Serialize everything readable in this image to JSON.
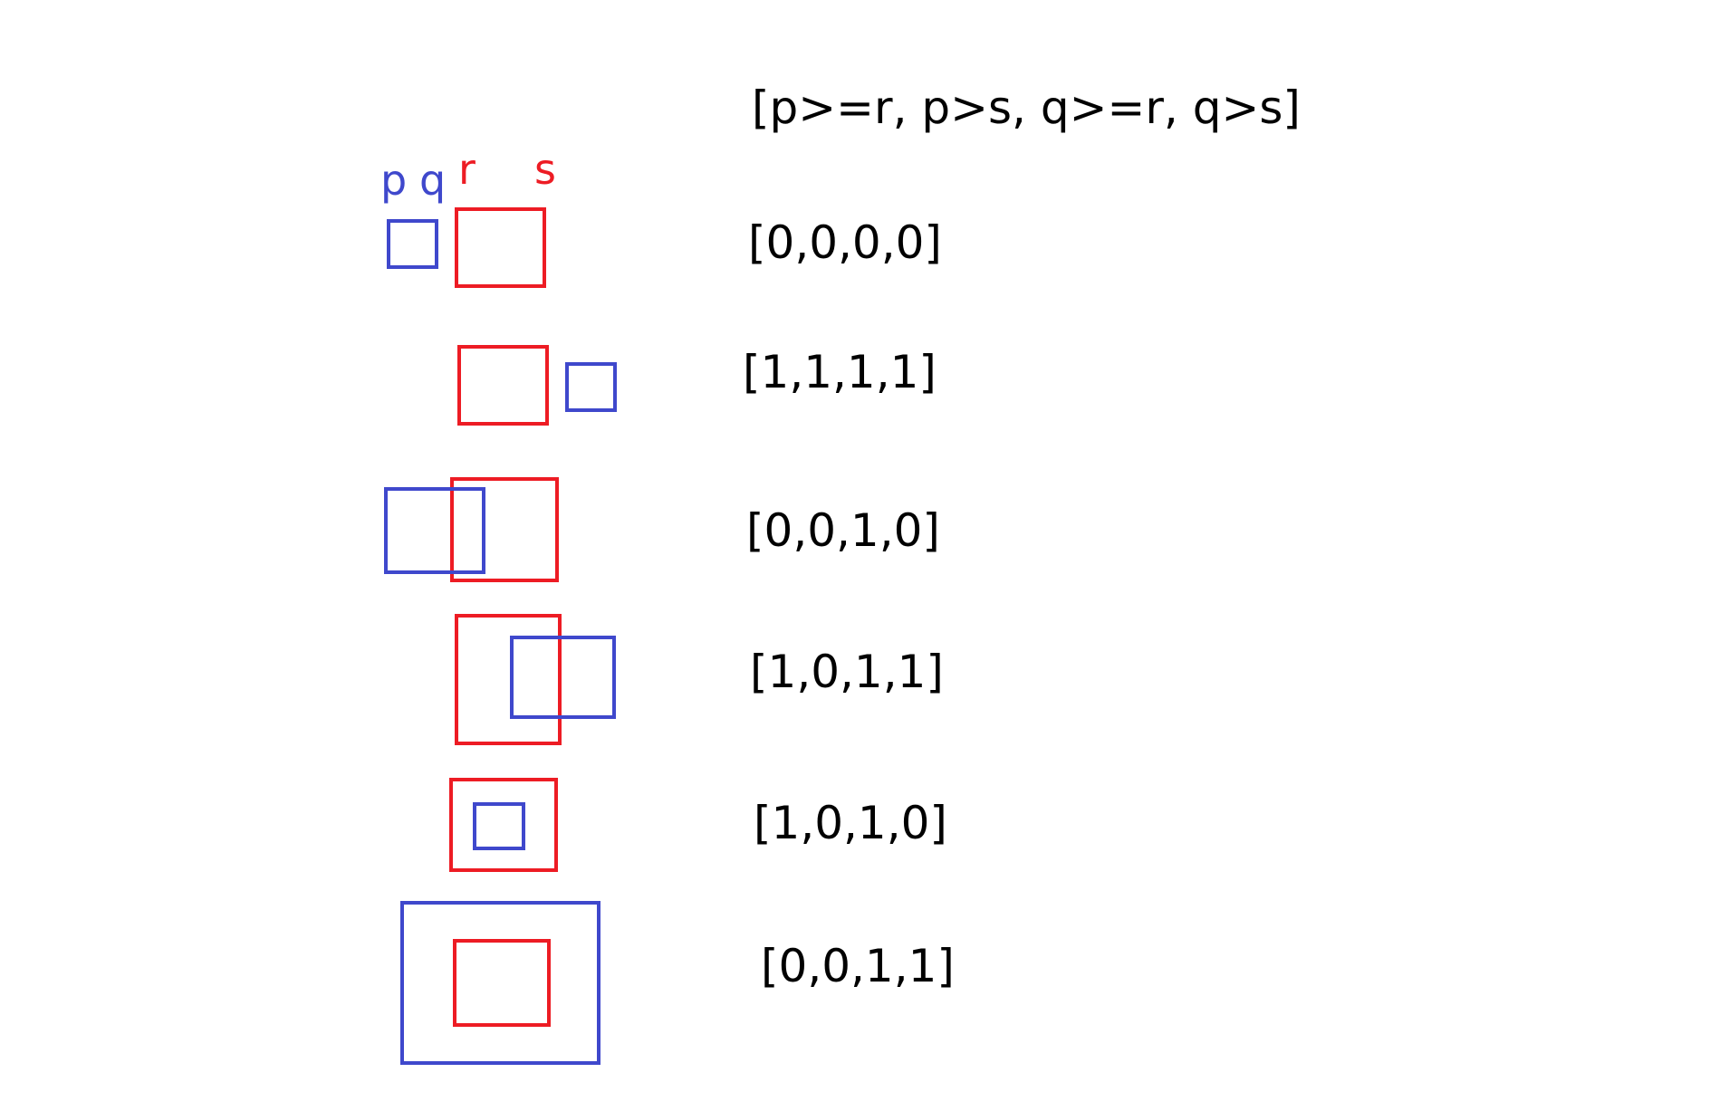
{
  "header": {
    "condition_text": "[p>=r, p>s, q>=r, q>s]"
  },
  "legend": {
    "p": "p",
    "q": "q",
    "r": "r",
    "s": "s"
  },
  "colors": {
    "blue_box": "#3f48cc",
    "red_box": "#ed1c24",
    "text": "#000000"
  },
  "rows": [
    {
      "result": "[0,0,0,0]"
    },
    {
      "result": "[1,1,1,1]"
    },
    {
      "result": "[0,0,1,0]"
    },
    {
      "result": "[1,0,1,1]"
    },
    {
      "result": "[1,0,1,0]"
    },
    {
      "result": "[0,0,1,1]"
    }
  ]
}
